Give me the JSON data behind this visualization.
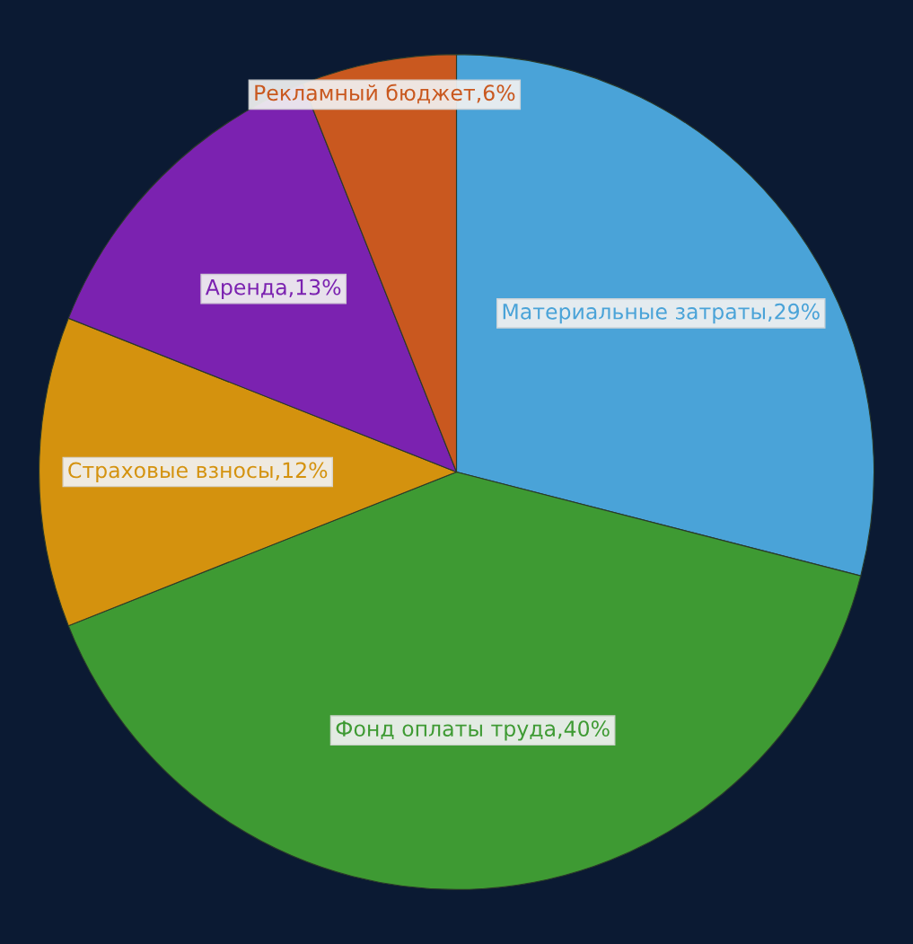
{
  "chart_data": {
    "type": "pie",
    "categories": [
      "Материальные затраты",
      "Фонд оплаты труда",
      "Страховые взносы",
      "Аренда",
      "Рекламный бюджет"
    ],
    "values": [
      29,
      40,
      12,
      13,
      6
    ],
    "colors": [
      "#4aa3d8",
      "#3e9a33",
      "#d4920e",
      "#7b22b0",
      "#c9581f"
    ],
    "value_labels": [
      "29%",
      "40%",
      "12%",
      "13%",
      "6%"
    ]
  }
}
